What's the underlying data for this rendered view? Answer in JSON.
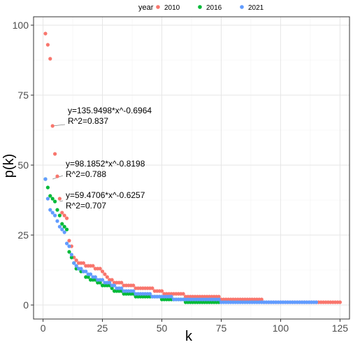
{
  "chart_data": {
    "type": "scatter",
    "xlabel": "k",
    "ylabel": "p(k)",
    "xlim": [
      -4,
      129
    ],
    "ylim": [
      -5,
      103
    ],
    "x_ticks": [
      0,
      25,
      50,
      75,
      100,
      125
    ],
    "y_ticks": [
      0,
      25,
      50,
      75,
      100
    ],
    "grid": true,
    "legend": {
      "title": "year",
      "position": "top",
      "entries": [
        {
          "label": "2010",
          "color": "#F8766D"
        },
        {
          "label": "2016",
          "color": "#00BA38"
        },
        {
          "label": "2021",
          "color": "#619CFF"
        }
      ]
    },
    "series": [
      {
        "name": "2010",
        "color": "#F8766D",
        "points": [
          [
            1,
            97
          ],
          [
            2,
            93
          ],
          [
            3,
            88
          ],
          [
            4,
            64
          ],
          [
            5,
            54
          ],
          [
            6,
            46
          ],
          [
            7,
            38
          ],
          [
            8,
            33
          ],
          [
            9,
            32
          ],
          [
            10,
            31
          ],
          [
            11,
            23
          ],
          [
            12,
            21
          ],
          [
            13,
            17
          ],
          [
            14,
            16
          ],
          [
            15,
            15
          ],
          [
            16,
            15
          ],
          [
            17,
            15
          ],
          [
            18,
            14
          ],
          [
            19,
            14
          ],
          [
            20,
            14
          ],
          [
            21,
            14
          ],
          [
            22,
            13
          ],
          [
            23,
            13
          ],
          [
            24,
            13
          ],
          [
            25,
            12
          ],
          [
            26,
            11
          ],
          [
            27,
            10
          ],
          [
            28,
            9
          ],
          [
            29,
            9
          ],
          [
            30,
            8
          ],
          [
            31,
            8
          ],
          [
            32,
            8
          ],
          [
            33,
            8
          ],
          [
            34,
            7
          ],
          [
            35,
            7
          ],
          [
            36,
            7
          ],
          [
            37,
            7
          ],
          [
            38,
            7
          ],
          [
            39,
            6
          ],
          [
            40,
            6
          ],
          [
            41,
            6
          ],
          [
            42,
            6
          ],
          [
            43,
            6
          ],
          [
            44,
            6
          ],
          [
            45,
            6
          ],
          [
            46,
            6
          ],
          [
            47,
            5
          ],
          [
            48,
            5
          ],
          [
            49,
            5
          ],
          [
            50,
            5
          ],
          [
            51,
            4
          ],
          [
            52,
            4
          ],
          [
            53,
            4
          ],
          [
            54,
            4
          ],
          [
            55,
            4
          ],
          [
            56,
            4
          ],
          [
            57,
            4
          ],
          [
            58,
            4
          ],
          [
            59,
            4
          ],
          [
            60,
            3
          ],
          [
            61,
            3
          ],
          [
            62,
            3
          ],
          [
            63,
            3
          ],
          [
            64,
            3
          ],
          [
            65,
            3
          ],
          [
            66,
            3
          ],
          [
            67,
            3
          ],
          [
            68,
            3
          ],
          [
            69,
            3
          ],
          [
            70,
            3
          ],
          [
            71,
            3
          ],
          [
            72,
            3
          ],
          [
            73,
            3
          ],
          [
            74,
            3
          ],
          [
            75,
            2
          ],
          [
            76,
            2
          ],
          [
            77,
            2
          ],
          [
            78,
            2
          ],
          [
            79,
            2
          ],
          [
            80,
            2
          ],
          [
            81,
            2
          ],
          [
            82,
            2
          ],
          [
            83,
            2
          ],
          [
            84,
            2
          ],
          [
            85,
            2
          ],
          [
            86,
            2
          ],
          [
            87,
            2
          ],
          [
            88,
            2
          ],
          [
            89,
            2
          ],
          [
            90,
            2
          ],
          [
            91,
            2
          ],
          [
            92,
            2
          ],
          [
            93,
            1
          ],
          [
            94,
            1
          ],
          [
            95,
            1
          ],
          [
            96,
            1
          ],
          [
            97,
            1
          ],
          [
            98,
            1
          ],
          [
            99,
            1
          ],
          [
            100,
            1
          ],
          [
            101,
            1
          ],
          [
            102,
            1
          ],
          [
            103,
            1
          ],
          [
            104,
            1
          ],
          [
            105,
            1
          ],
          [
            106,
            1
          ],
          [
            107,
            1
          ],
          [
            108,
            1
          ],
          [
            109,
            1
          ],
          [
            110,
            1
          ],
          [
            111,
            1
          ],
          [
            112,
            1
          ],
          [
            113,
            1
          ],
          [
            114,
            1
          ],
          [
            115,
            1
          ],
          [
            116,
            1
          ],
          [
            117,
            1
          ],
          [
            118,
            1
          ],
          [
            119,
            1
          ],
          [
            120,
            1
          ],
          [
            121,
            1
          ],
          [
            122,
            1
          ],
          [
            123,
            1
          ],
          [
            124,
            1
          ],
          [
            125,
            1
          ]
        ]
      },
      {
        "name": "2016",
        "color": "#00BA38",
        "points": [
          [
            1,
            45
          ],
          [
            2,
            42
          ],
          [
            3,
            39
          ],
          [
            4,
            38
          ],
          [
            5,
            37
          ],
          [
            6,
            34
          ],
          [
            7,
            32
          ],
          [
            8,
            29
          ],
          [
            9,
            28
          ],
          [
            10,
            27
          ],
          [
            11,
            19
          ],
          [
            12,
            17
          ],
          [
            13,
            15
          ],
          [
            14,
            13
          ],
          [
            15,
            13
          ],
          [
            16,
            12
          ],
          [
            17,
            12
          ],
          [
            18,
            10
          ],
          [
            19,
            10
          ],
          [
            20,
            9
          ],
          [
            21,
            9
          ],
          [
            22,
            9
          ],
          [
            23,
            8
          ],
          [
            24,
            8
          ],
          [
            25,
            7
          ],
          [
            26,
            7
          ],
          [
            27,
            7
          ],
          [
            28,
            7
          ],
          [
            29,
            6
          ],
          [
            30,
            5
          ],
          [
            31,
            5
          ],
          [
            32,
            5
          ],
          [
            33,
            5
          ],
          [
            34,
            4
          ],
          [
            35,
            4
          ],
          [
            36,
            4
          ],
          [
            37,
            4
          ],
          [
            38,
            4
          ],
          [
            39,
            3
          ],
          [
            40,
            3
          ],
          [
            41,
            3
          ],
          [
            42,
            3
          ],
          [
            43,
            3
          ],
          [
            44,
            3
          ],
          [
            45,
            3
          ],
          [
            46,
            3
          ],
          [
            47,
            3
          ],
          [
            48,
            3
          ],
          [
            49,
            3
          ],
          [
            50,
            2
          ],
          [
            51,
            2
          ],
          [
            52,
            2
          ],
          [
            53,
            2
          ],
          [
            54,
            2
          ],
          [
            55,
            2
          ],
          [
            56,
            2
          ],
          [
            57,
            2
          ],
          [
            58,
            2
          ],
          [
            59,
            2
          ],
          [
            60,
            1
          ],
          [
            61,
            1
          ],
          [
            62,
            1
          ],
          [
            63,
            1
          ],
          [
            64,
            1
          ],
          [
            65,
            1
          ],
          [
            66,
            1
          ],
          [
            67,
            1
          ],
          [
            68,
            1
          ],
          [
            69,
            1
          ],
          [
            70,
            1
          ],
          [
            71,
            1
          ],
          [
            72,
            1
          ],
          [
            73,
            1
          ],
          [
            74,
            1
          ]
        ]
      },
      {
        "name": "2021",
        "color": "#619CFF",
        "points": [
          [
            1,
            45
          ],
          [
            2,
            38
          ],
          [
            3,
            34
          ],
          [
            4,
            33
          ],
          [
            5,
            32
          ],
          [
            6,
            30
          ],
          [
            7,
            28
          ],
          [
            8,
            27
          ],
          [
            9,
            26
          ],
          [
            10,
            22
          ],
          [
            11,
            21
          ],
          [
            12,
            18
          ],
          [
            13,
            15
          ],
          [
            14,
            14
          ],
          [
            15,
            13
          ],
          [
            16,
            13
          ],
          [
            17,
            12
          ],
          [
            18,
            12
          ],
          [
            19,
            11
          ],
          [
            20,
            11
          ],
          [
            21,
            10
          ],
          [
            22,
            10
          ],
          [
            23,
            9
          ],
          [
            24,
            9
          ],
          [
            25,
            9
          ],
          [
            26,
            8
          ],
          [
            27,
            8
          ],
          [
            28,
            8
          ],
          [
            29,
            7
          ],
          [
            30,
            7
          ],
          [
            31,
            6
          ],
          [
            32,
            6
          ],
          [
            33,
            6
          ],
          [
            34,
            5
          ],
          [
            35,
            5
          ],
          [
            36,
            5
          ],
          [
            37,
            5
          ],
          [
            38,
            5
          ],
          [
            39,
            4
          ],
          [
            40,
            4
          ],
          [
            41,
            4
          ],
          [
            42,
            4
          ],
          [
            43,
            4
          ],
          [
            44,
            4
          ],
          [
            45,
            4
          ],
          [
            46,
            3
          ],
          [
            47,
            3
          ],
          [
            48,
            3
          ],
          [
            49,
            3
          ],
          [
            50,
            3
          ],
          [
            51,
            3
          ],
          [
            52,
            3
          ],
          [
            53,
            3
          ],
          [
            54,
            3
          ],
          [
            55,
            2
          ],
          [
            56,
            2
          ],
          [
            57,
            2
          ],
          [
            58,
            2
          ],
          [
            59,
            2
          ],
          [
            60,
            2
          ],
          [
            61,
            2
          ],
          [
            62,
            2
          ],
          [
            63,
            2
          ],
          [
            64,
            2
          ],
          [
            65,
            2
          ],
          [
            66,
            2
          ],
          [
            67,
            2
          ],
          [
            68,
            2
          ],
          [
            69,
            2
          ],
          [
            70,
            2
          ],
          [
            71,
            2
          ],
          [
            72,
            2
          ],
          [
            73,
            2
          ],
          [
            74,
            2
          ],
          [
            75,
            1
          ],
          [
            76,
            1
          ],
          [
            77,
            1
          ],
          [
            78,
            1
          ],
          [
            79,
            1
          ],
          [
            80,
            1
          ],
          [
            81,
            1
          ],
          [
            82,
            1
          ],
          [
            83,
            1
          ],
          [
            84,
            1
          ],
          [
            85,
            1
          ],
          [
            86,
            1
          ],
          [
            87,
            1
          ],
          [
            88,
            1
          ],
          [
            89,
            1
          ],
          [
            90,
            1
          ],
          [
            91,
            1
          ],
          [
            92,
            1
          ],
          [
            93,
            1
          ],
          [
            94,
            1
          ],
          [
            95,
            1
          ],
          [
            96,
            1
          ],
          [
            97,
            1
          ],
          [
            98,
            1
          ],
          [
            99,
            1
          ],
          [
            100,
            1
          ],
          [
            101,
            1
          ],
          [
            102,
            1
          ],
          [
            103,
            1
          ],
          [
            104,
            1
          ],
          [
            105,
            1
          ],
          [
            106,
            1
          ],
          [
            107,
            1
          ],
          [
            108,
            1
          ],
          [
            109,
            1
          ],
          [
            110,
            1
          ],
          [
            111,
            1
          ],
          [
            112,
            1
          ],
          [
            113,
            1
          ],
          [
            114,
            1
          ],
          [
            115,
            1
          ]
        ]
      }
    ],
    "annotations": [
      {
        "series": "2010",
        "line1": "y=135.9498*x^-0.6964",
        "line2": "R^2=0.837",
        "anchor": [
          4,
          64
        ]
      },
      {
        "series": "2016",
        "line1": "y=98.1852*x^-0.8198",
        "line2": "R^2=0.788",
        "anchor": [
          4,
          45
        ]
      },
      {
        "series": "2021",
        "line1": "y=59.4706*x^-0.6257",
        "line2": "R^2=0.707",
        "anchor": [
          7,
          37
        ]
      }
    ]
  }
}
